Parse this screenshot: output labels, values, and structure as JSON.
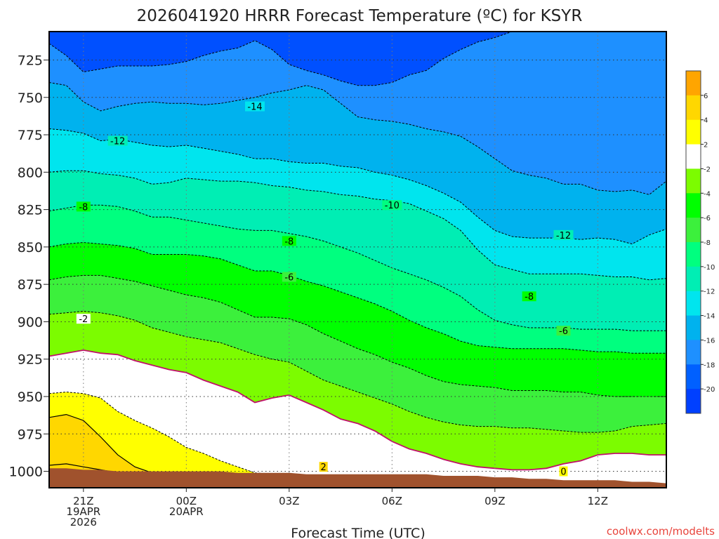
{
  "chart_data": {
    "type": "contour",
    "title": "2026041920 HRRR Forecast Temperature (ºC) for KSYR",
    "xlabel": "Forecast Time (UTC)",
    "ylabel": "",
    "x_hours": [
      0,
      0.5,
      1,
      1.5,
      2,
      2.5,
      3,
      3.5,
      4,
      4.5,
      5,
      5.5,
      6,
      6.5,
      7,
      7.5,
      8,
      8.5,
      9,
      9.5,
      10,
      10.5,
      11,
      11.5,
      12,
      12.5,
      13,
      13.5,
      14,
      14.5,
      15,
      15.5,
      16,
      16.5,
      17,
      17.5,
      18
    ],
    "xlim": [
      0,
      18
    ],
    "x_ticks": [
      {
        "hour": 1,
        "lines": [
          "21Z",
          "19APR",
          "2026"
        ]
      },
      {
        "hour": 4,
        "lines": [
          "00Z",
          "20APR"
        ]
      },
      {
        "hour": 7,
        "lines": [
          "03Z"
        ]
      },
      {
        "hour": 10,
        "lines": [
          "06Z"
        ]
      },
      {
        "hour": 13,
        "lines": [
          "09Z"
        ]
      },
      {
        "hour": 16,
        "lines": [
          "12Z"
        ]
      }
    ],
    "y_ticks": [
      725,
      750,
      775,
      800,
      825,
      850,
      875,
      900,
      925,
      950,
      975,
      1000
    ],
    "ylim": [
      706,
      1011
    ],
    "isotherms": [
      {
        "value": -18,
        "color": "#1e90ff",
        "levels": [
          714,
          722,
          733,
          731,
          729,
          729,
          729,
          728,
          726,
          722,
          719,
          717,
          712,
          718,
          728,
          732,
          735,
          739,
          742,
          742,
          740,
          735,
          732,
          724,
          718,
          713,
          710,
          706,
          706,
          706,
          706,
          706,
          706,
          706,
          706,
          706,
          706
        ]
      },
      {
        "value": -16,
        "color": "#00b2ee",
        "levels": [
          740,
          742,
          753,
          759,
          756,
          754,
          753,
          754,
          754,
          755,
          754,
          752,
          750,
          747,
          745,
          742,
          745,
          754,
          763,
          765,
          766,
          768,
          771,
          773,
          776,
          783,
          791,
          799,
          802,
          804,
          808,
          808,
          812,
          813,
          812,
          815,
          806
        ]
      },
      {
        "value": -14,
        "color": "#00e5ee",
        "levels": [
          771,
          772,
          774,
          779,
          778,
          780,
          782,
          783,
          782,
          784,
          786,
          788,
          791,
          791,
          793,
          794,
          794,
          796,
          797,
          800,
          802,
          805,
          809,
          814,
          820,
          830,
          839,
          843,
          844,
          844,
          844,
          845,
          844,
          845,
          848,
          842,
          838
        ]
      },
      {
        "value": -12,
        "color": "#00eeb4",
        "levels": [
          800,
          799,
          799,
          801,
          802,
          804,
          808,
          807,
          804,
          805,
          806,
          806,
          807,
          809,
          810,
          812,
          813,
          815,
          816,
          818,
          819,
          821,
          826,
          831,
          839,
          852,
          862,
          865,
          868,
          868,
          868,
          868,
          869,
          870,
          870,
          872,
          871
        ]
      },
      {
        "value": -10,
        "color": "#00ff7f",
        "levels": [
          826,
          824,
          822,
          822,
          823,
          826,
          830,
          830,
          832,
          834,
          836,
          838,
          839,
          839,
          841,
          843,
          846,
          850,
          854,
          859,
          864,
          868,
          872,
          877,
          883,
          892,
          899,
          902,
          904,
          904,
          904,
          905,
          905,
          905,
          906,
          906,
          906
        ]
      },
      {
        "value": -8,
        "color": "#00ff00",
        "levels": [
          850,
          848,
          847,
          848,
          849,
          851,
          855,
          855,
          855,
          856,
          858,
          862,
          866,
          866,
          869,
          873,
          876,
          880,
          884,
          888,
          893,
          899,
          904,
          908,
          913,
          916,
          917,
          918,
          918,
          918,
          918,
          919,
          920,
          920,
          921,
          921,
          921
        ]
      },
      {
        "value": -6,
        "color": "#3cf03c",
        "levels": [
          872,
          870,
          869,
          869,
          871,
          873,
          876,
          879,
          882,
          884,
          887,
          892,
          897,
          897,
          898,
          902,
          908,
          913,
          918,
          922,
          927,
          931,
          936,
          940,
          942,
          943,
          944,
          946,
          946,
          946,
          947,
          947,
          949,
          950,
          950,
          950,
          950
        ]
      },
      {
        "value": -4,
        "color": "#7cfc00",
        "levels": [
          895,
          894,
          893,
          894,
          896,
          899,
          904,
          907,
          910,
          912,
          914,
          918,
          922,
          925,
          927,
          933,
          939,
          943,
          947,
          951,
          955,
          960,
          964,
          967,
          969,
          970,
          970,
          971,
          971,
          972,
          973,
          974,
          974,
          973,
          970,
          969,
          968
        ]
      },
      {
        "value": -2,
        "color": "#ffffff",
        "levels": [
          923,
          921,
          919,
          921,
          922,
          926,
          929,
          932,
          934,
          939,
          943,
          947,
          954,
          951,
          949,
          954,
          959,
          965,
          968,
          973,
          980,
          985,
          988,
          992,
          995,
          997,
          998,
          999,
          999,
          998,
          995,
          993,
          989,
          988,
          988,
          989,
          989
        ]
      },
      {
        "value": 0,
        "color": "#ffff00",
        "levels": [
          948,
          947,
          948,
          951,
          960,
          966,
          971,
          977,
          984,
          988,
          993,
          997,
          1001,
          1002,
          1004,
          1004,
          1005,
          1006,
          1006,
          1007,
          1007,
          1008,
          1008,
          1009,
          1009,
          1009,
          1009,
          1009,
          1009,
          1010,
          1010,
          1010,
          1010,
          1010,
          1010,
          1010,
          1010
        ]
      },
      {
        "value": 2,
        "color": "#ffd700",
        "levels": [
          964,
          962,
          966,
          977,
          989,
          997,
          1001,
          1002,
          1003,
          1004,
          1004,
          1004,
          1005,
          1005,
          1006,
          1006,
          1007,
          1007,
          1008,
          1008,
          1008,
          1009,
          1009,
          1009,
          1009,
          1009,
          1009,
          1010,
          1010,
          1010,
          1010,
          1010,
          1010,
          1010,
          1010,
          1010,
          1010
        ]
      },
      {
        "value": 4,
        "color": "#ffd700",
        "levels": [
          996,
          995,
          997,
          999,
          1001,
          1002,
          1003,
          1003,
          1004,
          1004,
          1004,
          1005,
          1005,
          1006,
          1006,
          1006,
          1007,
          1007,
          1008,
          1008,
          1008,
          1009,
          1009,
          1009,
          1009,
          1009,
          1009,
          1010,
          1010,
          1010,
          1010,
          1010,
          1010,
          1010,
          1010,
          1010,
          1010
        ]
      }
    ],
    "freezing_line_levels": [
      923,
      921,
      919,
      921,
      922,
      926,
      929,
      932,
      934,
      939,
      943,
      947,
      954,
      951,
      949,
      954,
      959,
      965,
      968,
      973,
      980,
      985,
      988,
      992,
      995,
      997,
      998,
      999,
      999,
      998,
      995,
      993,
      989,
      988,
      988,
      989,
      989
    ],
    "surface_levels": [
      998,
      998,
      999,
      999,
      1000,
      1000,
      1000,
      1000,
      1000,
      1000,
      1000,
      1001,
      1001,
      1001,
      1001,
      1002,
      1002,
      1002,
      1002,
      1002,
      1002,
      1002,
      1002,
      1003,
      1003,
      1003,
      1004,
      1004,
      1005,
      1005,
      1006,
      1006,
      1006,
      1006,
      1007,
      1007,
      1008
    ],
    "surface_color": "#a0522d",
    "contour_labels": [
      {
        "text": "-14",
        "hour": 6,
        "level": 756
      },
      {
        "text": "-12",
        "hour": 2,
        "level": 779
      },
      {
        "text": "-10",
        "hour": 10,
        "level": 822
      },
      {
        "text": "-12",
        "hour": 15,
        "level": 842
      },
      {
        "text": "-8",
        "hour": 1,
        "level": 823
      },
      {
        "text": "-8",
        "hour": 7,
        "level": 846
      },
      {
        "text": "-6",
        "hour": 7,
        "level": 870
      },
      {
        "text": "-8",
        "hour": 14,
        "level": 883
      },
      {
        "text": "-6",
        "hour": 15,
        "level": 906
      },
      {
        "text": "-2",
        "hour": 1,
        "level": 898
      },
      {
        "text": "2",
        "hour": 8,
        "level": 997
      },
      {
        "text": "0",
        "hour": 15,
        "level": 1000
      }
    ],
    "colorbar": {
      "labels": [
        "6",
        "4",
        "2",
        "-2",
        "-4",
        "-6",
        "-8",
        "-10",
        "-12",
        "-14",
        "-16",
        "-18",
        "-20"
      ],
      "colors": [
        "#ffa500",
        "#ffd700",
        "#ffff00",
        "#ffffff",
        "#7cfc00",
        "#00ff00",
        "#3cf03c",
        "#00ff7f",
        "#00eeb4",
        "#00e5ee",
        "#00b2ee",
        "#1e90ff",
        "#0060ff",
        "#0040ff"
      ]
    },
    "grid": true,
    "watermark": "coolwx.com/modelts"
  }
}
